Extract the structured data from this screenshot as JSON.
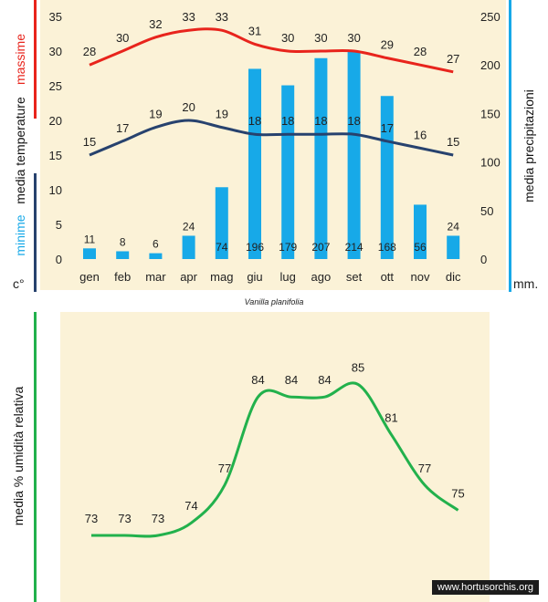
{
  "chart_data": [
    {
      "type": "bar",
      "subtype": "combo-bar-line",
      "categories": [
        "gen",
        "feb",
        "mar",
        "apr",
        "mag",
        "giu",
        "lug",
        "ago",
        "set",
        "ott",
        "nov",
        "dic"
      ],
      "series": [
        {
          "name": "massime",
          "kind": "line",
          "axis": "left",
          "color": "#e8241c",
          "values": [
            28,
            30,
            32,
            33,
            33,
            31,
            30,
            30,
            30,
            29,
            28,
            27
          ]
        },
        {
          "name": "minime",
          "kind": "line",
          "axis": "left",
          "color": "#27426e",
          "values": [
            15,
            17,
            19,
            20,
            19,
            18,
            18,
            18,
            18,
            17,
            16,
            15
          ]
        },
        {
          "name": "media precipitazioni",
          "kind": "bar",
          "axis": "right",
          "color": "#17a9e8",
          "values": [
            11,
            8,
            6,
            24,
            74,
            196,
            179,
            207,
            214,
            168,
            56,
            24
          ]
        }
      ],
      "ylim": [
        0,
        35
      ],
      "yticks": [
        0,
        5,
        10,
        15,
        20,
        25,
        30,
        35
      ],
      "y2lim": [
        0,
        250
      ],
      "y2ticks": [
        0,
        50,
        100,
        150,
        200,
        250
      ],
      "left_axis_text": {
        "top": "massime",
        "middle": "media  temperature",
        "bottom": "minime"
      },
      "left_axis_unit": "c°",
      "right_axis_label": "media  precipitazioni",
      "right_axis_unit": "mm.",
      "grid": false
    },
    {
      "type": "line",
      "categories": [
        "gen",
        "feb",
        "mar",
        "apr",
        "mag",
        "giu",
        "lug",
        "ago",
        "set",
        "ott",
        "nov",
        "dic"
      ],
      "series": [
        {
          "name": "media %  umidità relativa",
          "color": "#22b14c",
          "values": [
            73,
            73,
            73,
            74,
            77,
            84,
            84,
            84,
            85,
            81,
            77,
            75
          ]
        }
      ],
      "ylim": [
        70,
        88
      ],
      "ylabel": "media %  umidità relativa",
      "grid": false
    }
  ],
  "species": "Vanilla planifolia",
  "watermark": "www.hortusorchis.org",
  "colors": {
    "background": "#fbf2d7",
    "red": "#e8241c",
    "navy": "#27426e",
    "blue": "#17a9e8",
    "green": "#22b14c"
  }
}
